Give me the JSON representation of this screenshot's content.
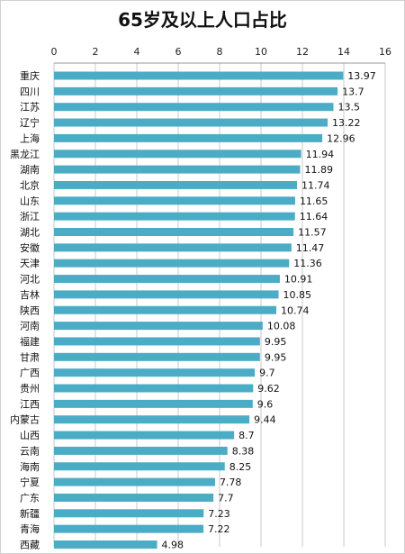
{
  "chart_data": {
    "type": "bar",
    "orientation": "horizontal",
    "title": "65岁及以上人口占比",
    "xlim": [
      0,
      16
    ],
    "x_ticks": [
      "0",
      "2",
      "4",
      "6",
      "8",
      "10",
      "12",
      "14",
      "16"
    ],
    "x_tick_values": [
      0,
      2,
      4,
      6,
      8,
      10,
      12,
      14,
      16
    ],
    "axis_position": "top",
    "grid": true,
    "bar_color": "#4BACC6",
    "categories": [
      "重庆",
      "四川",
      "江苏",
      "辽宁",
      "上海",
      "黑龙江",
      "湖南",
      "北京",
      "山东",
      "浙江",
      "湖北",
      "安徽",
      "天津",
      "河北",
      "吉林",
      "陕西",
      "河南",
      "福建",
      "甘肃",
      "广西",
      "贵州",
      "江西",
      "内蒙古",
      "山西",
      "云南",
      "海南",
      "宁夏",
      "广东",
      "新疆",
      "青海",
      "西藏"
    ],
    "values": [
      13.97,
      13.7,
      13.5,
      13.22,
      12.96,
      11.94,
      11.89,
      11.74,
      11.65,
      11.64,
      11.57,
      11.47,
      11.36,
      10.91,
      10.85,
      10.74,
      10.08,
      9.95,
      9.95,
      9.7,
      9.62,
      9.6,
      9.44,
      8.7,
      8.38,
      8.25,
      7.78,
      7.7,
      7.23,
      7.22,
      4.98
    ],
    "data_labels": [
      "13.97",
      "13.7",
      "13.5",
      "13.22",
      "12.96",
      "11.94",
      "11.89",
      "11.74",
      "11.65",
      "11.64",
      "11.57",
      "11.47",
      "11.36",
      "10.91",
      "10.85",
      "10.74",
      "10.08",
      "9.95",
      "9.95",
      "9.7",
      "9.62",
      "9.6",
      "9.44",
      "8.7",
      "8.38",
      "8.25",
      "7.78",
      "7.7",
      "7.23",
      "7.22",
      "4.98"
    ]
  }
}
